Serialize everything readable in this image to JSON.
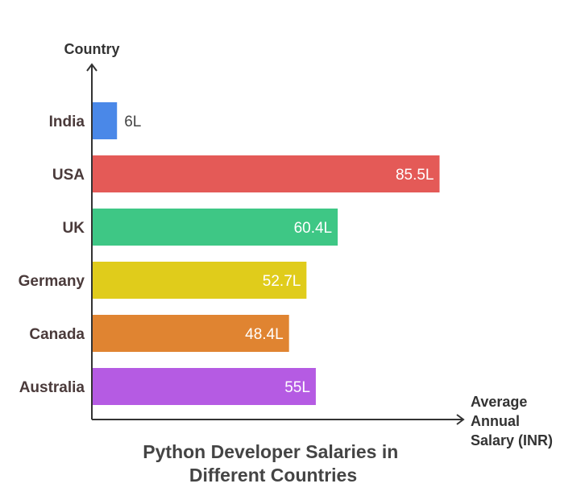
{
  "chart_data": {
    "type": "bar",
    "orientation": "horizontal",
    "title": "Python Developer Salaries in Different Countries",
    "ylabel": "Country",
    "xlabel": "Average Annual Salary (INR)",
    "categories": [
      "India",
      "USA",
      "UK",
      "Germany",
      "Canada",
      "Australia"
    ],
    "values": [
      6,
      85.5,
      60.4,
      52.7,
      48.4,
      55
    ],
    "value_labels": [
      "6L",
      "85.5L",
      "60.4L",
      "52.7L",
      "48.4L",
      "55L"
    ],
    "colors": [
      "#4a88e8",
      "#e45a57",
      "#3ec785",
      "#e0cc1b",
      "#e08431",
      "#b55be3"
    ],
    "xlim": [
      0,
      100
    ],
    "grid": false,
    "legend": "none"
  }
}
